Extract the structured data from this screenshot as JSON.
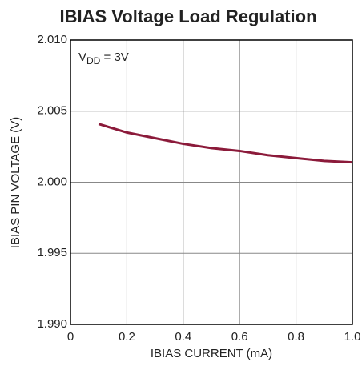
{
  "chart_data": {
    "type": "line",
    "title": "IBIAS Voltage Load Regulation",
    "xlabel": "IBIAS CURRENT (mA)",
    "ylabel": "IBIAS PIN VOLTAGE (V)",
    "annotation": [
      "V",
      "DD",
      " = 3V"
    ],
    "x": [
      0.1,
      0.2,
      0.3,
      0.4,
      0.5,
      0.6,
      0.7,
      0.8,
      0.9,
      1.0
    ],
    "series": [
      {
        "color": "#8b1a3a",
        "values": [
          2.0041,
          2.0035,
          2.0031,
          2.0027,
          2.0024,
          2.0022,
          2.0019,
          2.0017,
          2.0015,
          2.0014
        ]
      }
    ],
    "xlim": [
      0,
      1
    ],
    "xticks": [
      0,
      0.2,
      0.4,
      0.6,
      0.8,
      {
        "value": 1,
        "label": "1.0"
      }
    ],
    "ylim": [
      1.99,
      2.01
    ],
    "yticks": [
      {
        "value": 1.99,
        "label": "1.990"
      },
      1.995,
      {
        "value": 2,
        "label": "2.000"
      },
      2.005,
      {
        "value": 2.01,
        "label": "2.010"
      }
    ],
    "grid": true
  }
}
